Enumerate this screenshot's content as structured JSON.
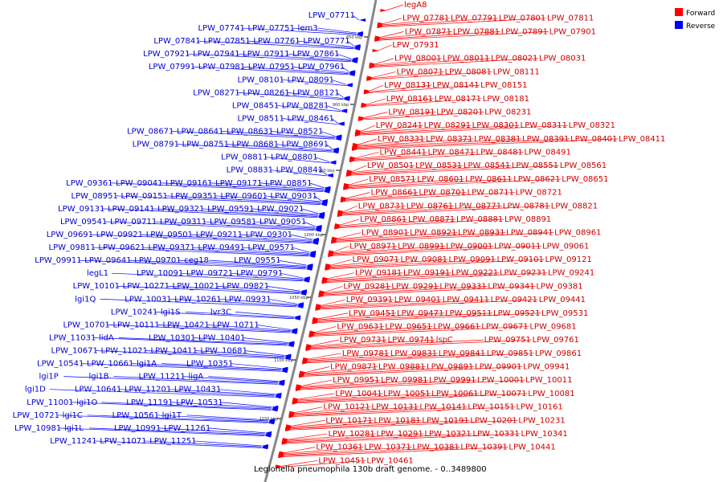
{
  "caption": "Legionella pneumophila 130b draft genome. - 0..3489800",
  "legend": {
    "forward_label": "Forward",
    "reverse_label": "Reverse",
    "forward_color": "#ff0000",
    "reverse_color": "#0000ff"
  },
  "ticks": [
    "850 kbp",
    "900 kbp",
    "950 kbp",
    "1000 kbp",
    "1050 kbp",
    "1100 kbp",
    "1150 kbp"
  ],
  "forward_genes": [
    "legA8",
    "LPW_07781",
    "LPW_07791",
    "LPW_07801",
    "LPW_07811",
    "LPW_07871",
    "LPW_07881",
    "LPW_07891",
    "LPW_07901",
    "LPW_07931",
    "LPW_08001",
    "LPW_08011",
    "LPW_08021",
    "LPW_08031",
    "LPW_08071",
    "LPW_08081",
    "LPW_08111",
    "LPW_08131",
    "LPW_08141",
    "LPW_08151",
    "LPW_08161",
    "LPW_08171",
    "LPW_08181",
    "LPW_08191",
    "LPW_08201",
    "LPW_08231",
    "LPW_08241",
    "LPW_08291",
    "LPW_08301",
    "LPW_08311",
    "LPW_08321",
    "LPW_08331",
    "LPW_08371",
    "LPW_08381",
    "LPW_08391",
    "LPW_08401",
    "LPW_08411",
    "LPW_08441",
    "LPW_08471",
    "LPW_08481",
    "LPW_08491",
    "LPW_08501",
    "LPW_08531",
    "LPW_08541",
    "LPW_08551",
    "LPW_08561",
    "LPW_08571",
    "LPW_08601",
    "LPW_08611",
    "LPW_08621",
    "LPW_08651",
    "LPW_08661",
    "LPW_08701",
    "LPW_08711",
    "LPW_08721",
    "LPW_08731",
    "LPW_08761",
    "LPW_08771",
    "LPW_08781",
    "LPW_08821",
    "LPW_08861",
    "LPW_08871",
    "LPW_08881",
    "LPW_08891",
    "LPW_08901",
    "LPW_08921",
    "LPW_08931",
    "LPW_08941",
    "LPW_08961",
    "LPW_08971",
    "LPW_08991",
    "LPW_09001",
    "LPW_09011",
    "LPW_09061",
    "LPW_09071",
    "LPW_09081",
    "LPW_09091",
    "LPW_09101",
    "LPW_09121",
    "LPW_09181",
    "LPW_09191",
    "LPW_09221",
    "LPW_09231",
    "LPW_09241",
    "LPW_09281",
    "LPW_09291",
    "LPW_09331",
    "LPW_09341",
    "LPW_09381",
    "LPW_09391",
    "LPW_09401",
    "LPW_09411",
    "LPW_09421",
    "LPW_09441",
    "LPW_09451",
    "LPW_09471",
    "LPW_09511",
    "LPW_09521",
    "LPW_09531",
    "LPW_09631",
    "LPW_09651",
    "LPW_09661",
    "LPW_09671",
    "LPW_09681",
    "LPW_09731",
    "LPW_09741",
    "lspC",
    "LPW_09751",
    "LPW_09761",
    "LPW_09781",
    "LPW_09831",
    "LPW_09841",
    "LPW_09851",
    "LPW_09861",
    "LPW_09871",
    "LPW_09881",
    "LPW_09891",
    "LPW_09901",
    "LPW_09941",
    "LPW_09951",
    "LPW_09981",
    "LPW_09991",
    "LPW_10001",
    "LPW_10011",
    "LPW_10041",
    "LPW_10051",
    "LPW_10061",
    "LPW_10071",
    "LPW_10081",
    "LPW_10121",
    "LPW_10131",
    "LPW_10141",
    "LPW_10151",
    "LPW_10161",
    "LPW_10171",
    "LPW_10181",
    "LPW_10191",
    "LPW_10201",
    "LPW_10231",
    "LPW_10281",
    "LPW_10291",
    "LPW_10321",
    "LPW_10331",
    "LPW_10341",
    "LPW_10361",
    "LPW_10371",
    "LPW_10381",
    "LPW_10391",
    "LPW_10441",
    "LPW_10451",
    "LPW_10461"
  ],
  "reverse_genes": [
    "LPW_07711",
    "lem3",
    "LPW_07751",
    "LPW_07741",
    "LPW_07771",
    "LPW_07761",
    "LPW_07851",
    "LPW_07841",
    "LPW_07861",
    "LPW_07911",
    "LPW_07941",
    "LPW_07921",
    "LPW_07961",
    "LPW_07951",
    "LPW_07981",
    "LPW_07991",
    "LPW_08091",
    "LPW_08101",
    "LPW_08121",
    "LPW_08261",
    "LPW_08271",
    "LPW_08281",
    "LPW_08451",
    "LPW_08461",
    "LPW_08511",
    "LPW_08521",
    "LPW_08631",
    "LPW_08641",
    "LPW_08671",
    "LPW_08691",
    "LPW_08681",
    "LPW_08751",
    "LPW_08791",
    "LPW_08801",
    "LPW_08811",
    "LPW_08841",
    "LPW_08831",
    "LPW_08851",
    "LPW_09171",
    "LPW_09161",
    "LPW_09041",
    "LPW_09361",
    "LPW_09031",
    "LPW_09601",
    "LPW_09351",
    "LPW_09151",
    "LPW_08951",
    "LPW_09021",
    "LPW_09591",
    "LPW_09321",
    "LPW_09141",
    "LPW_09131",
    "LPW_09051",
    "LPW_09581",
    "LPW_09311",
    "LPW_09711",
    "LPW_09541",
    "LPW_09301",
    "LPW_09211",
    "LPW_09501",
    "LPW_09921",
    "LPW_09691",
    "LPW_09571",
    "LPW_09491",
    "LPW_09371",
    "LPW_09621",
    "LPW_09811",
    "LPW_09551",
    "ceg18",
    "LPW_09701",
    "LPW_09641",
    "LPW_09911",
    "LPW_09791",
    "LPW_09721",
    "LPW_10091",
    "legL1",
    "LPW_09821",
    "LPW_10021",
    "LPW_10271",
    "LPW_10101",
    "LPW_09931",
    "LPW_10261",
    "LPW_10031",
    "lgi1Q",
    "lvr3C",
    "lgi1S",
    "LPW_10241",
    "LPW_10711",
    "LPW_10421",
    "LPW_10111",
    "LPW_10701",
    "LPW_10401",
    "LPW_10301",
    "lidA",
    "LPW_11031",
    "LPW_10681",
    "LPW_10411",
    "LPW_11021",
    "LPW_10671",
    "LPW_10351",
    "lgi1A",
    "LPW_10661",
    "LPW_10541",
    "ligA",
    "LPW_11211",
    "lgi1B",
    "lgi1P",
    "LPW_10431",
    "LPW_11201",
    "LPW_10641",
    "lgi1D",
    "LPW_10531",
    "LPW_11191",
    "lgi1O",
    "LPW_11001",
    "lgi1T",
    "LPW_10561",
    "lgi1C",
    "LPW_10721",
    "LPW_11141",
    "LPW_11261",
    "LPW_10991",
    "lgi1L",
    "LPW_10981",
    "LPW_11251",
    "LPW_11071",
    "LPW_11241"
  ]
}
